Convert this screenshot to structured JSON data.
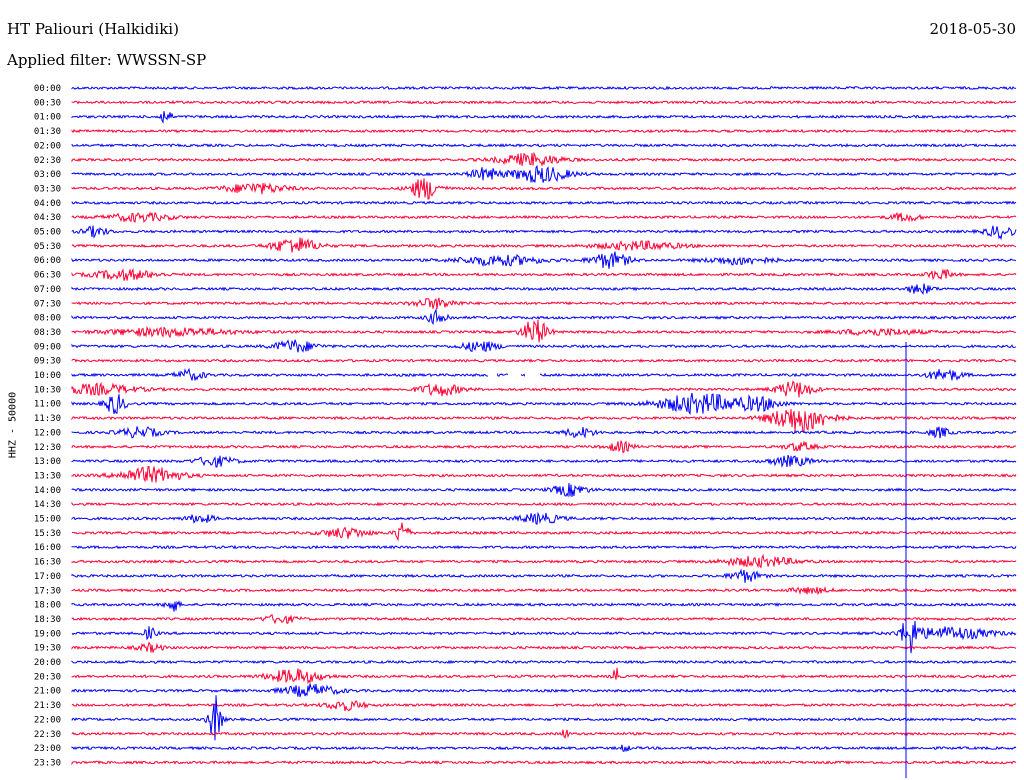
{
  "header": {
    "station": "HT Paliouri (Halkidiki)",
    "date": "2018-05-30",
    "filter_label": "Applied filter: WWSSN-SP"
  },
  "y_axis_label": "HHZ - 50000",
  "colors": {
    "odd_row": "#0000ff",
    "even_row": "#ff0033",
    "text": "#000000",
    "background": "#ffffff"
  },
  "rows": [
    "00:00",
    "00:30",
    "01:00",
    "01:30",
    "02:00",
    "02:30",
    "03:00",
    "03:30",
    "04:00",
    "04:30",
    "05:00",
    "05:30",
    "06:00",
    "06:30",
    "07:00",
    "07:30",
    "08:00",
    "08:30",
    "09:00",
    "09:30",
    "10:00",
    "10:30",
    "11:00",
    "11:30",
    "12:00",
    "12:30",
    "13:00",
    "13:30",
    "14:00",
    "14:30",
    "15:00",
    "15:30",
    "16:00",
    "16:30",
    "17:00",
    "17:30",
    "18:00",
    "18:30",
    "19:00",
    "19:30",
    "20:00",
    "20:30",
    "21:00",
    "21:30",
    "22:00",
    "22:30",
    "23:00",
    "23:30"
  ]
}
